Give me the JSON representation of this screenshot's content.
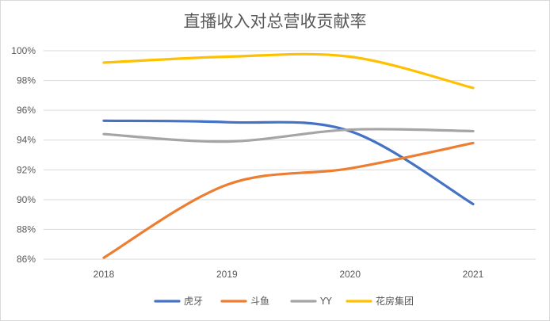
{
  "chart_data": {
    "type": "line",
    "title": "直播收入对总营收贡献率",
    "xlabel": "",
    "ylabel": "",
    "categories": [
      "2018",
      "2019",
      "2020",
      "2021"
    ],
    "ylim": [
      0.86,
      1.0
    ],
    "yticks": [
      "86%",
      "88%",
      "90%",
      "92%",
      "94%",
      "96%",
      "98%",
      "100%"
    ],
    "ytick_values": [
      0.86,
      0.88,
      0.9,
      0.92,
      0.94,
      0.96,
      0.98,
      1.0
    ],
    "grid": true,
    "smooth": true,
    "legend_position": "bottom",
    "series": [
      {
        "name": "虎牙",
        "color": "#4472C4",
        "values": [
          0.953,
          0.952,
          0.946,
          0.897
        ]
      },
      {
        "name": "斗鱼",
        "color": "#ED7D31",
        "values": [
          0.861,
          0.91,
          0.921,
          0.938
        ]
      },
      {
        "name": "YY",
        "color": "#A5A5A5",
        "values": [
          0.944,
          0.939,
          0.947,
          0.946
        ]
      },
      {
        "name": "花房集团",
        "color": "#FFC000",
        "values": [
          0.992,
          0.996,
          0.996,
          0.975
        ]
      }
    ]
  }
}
